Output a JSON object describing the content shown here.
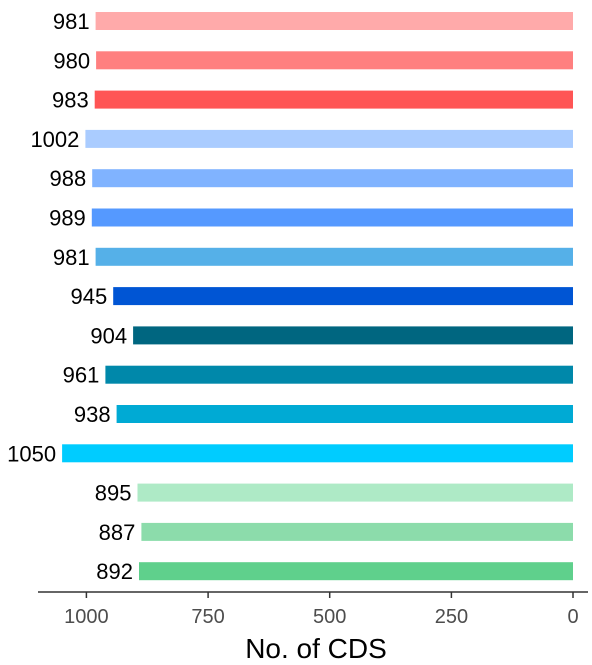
{
  "chart_data": {
    "type": "bar",
    "orientation": "horizontal",
    "x_direction": "reversed",
    "values": [
      981,
      980,
      983,
      1002,
      988,
      989,
      981,
      945,
      904,
      961,
      938,
      1050,
      895,
      887,
      892
    ],
    "labels": [
      "981",
      "980",
      "983",
      "1002",
      "988",
      "989",
      "981",
      "945",
      "904",
      "961",
      "938",
      "1050",
      "895",
      "887",
      "892"
    ],
    "colors": [
      "#ffaaaa",
      "#ff8080",
      "#ff5555",
      "#aaccff",
      "#80b3ff",
      "#5599ff",
      "#55b0e8",
      "#0055d4",
      "#006680",
      "#0088aa",
      "#00aad4",
      "#00ccff",
      "#aeeac6",
      "#8cdcab",
      "#5fd08c"
    ],
    "xlabel": "No. of CDS",
    "ylabel": "",
    "title": "",
    "xlim": [
      1080,
      0
    ],
    "xticks": [
      1000,
      750,
      500,
      250,
      0
    ],
    "grid": false,
    "legend": "none"
  }
}
